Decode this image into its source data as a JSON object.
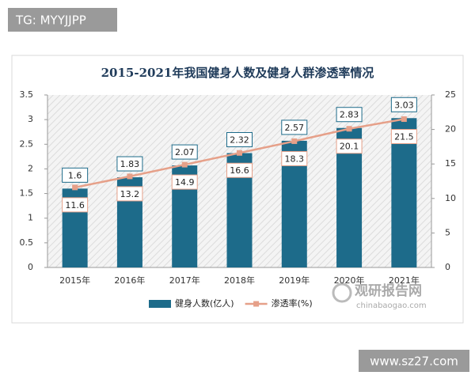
{
  "chart_data": {
    "type": "bar",
    "title": "2015-2021年我国健身人数及健身人群渗透率情况",
    "categories": [
      "2015年",
      "2016年",
      "2017年",
      "2018年",
      "2019年",
      "2020年",
      "2021年"
    ],
    "series": [
      {
        "name": "健身人数(亿人)",
        "color": "#1d6b8a",
        "type": "bar",
        "values": [
          1.6,
          1.83,
          2.07,
          2.32,
          2.57,
          2.83,
          3.03
        ]
      },
      {
        "name": "渗透率(%)",
        "color": "#e6a089",
        "type": "line",
        "axis": "y2",
        "values": [
          11.6,
          13.2,
          14.9,
          16.6,
          18.3,
          20.1,
          21.5
        ]
      }
    ],
    "ylim": [
      0,
      3.5
    ],
    "yticks": [
      0,
      0.5,
      1,
      1.5,
      2,
      2.5,
      3,
      3.5
    ],
    "y2lim": [
      0,
      25
    ],
    "y2ticks": [
      0,
      5,
      10,
      15,
      20,
      25
    ],
    "legend": "bottom"
  },
  "watermarks": {
    "top_left": "TG: MYYJJPP",
    "logo": "观研报告网",
    "logo_url": "chinabaogao.com",
    "bottom_right": "www.sz27.com"
  }
}
